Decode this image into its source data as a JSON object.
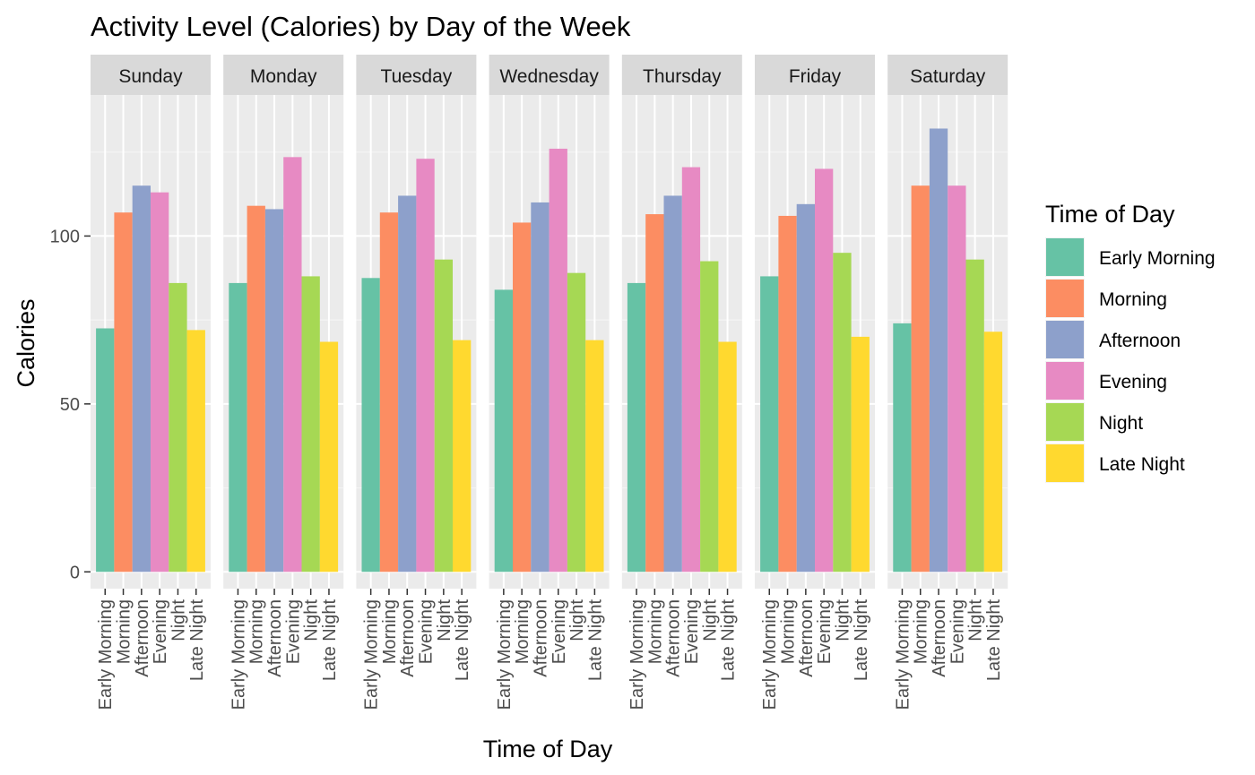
{
  "chart_data": {
    "type": "bar",
    "title": "Activity Level (Calories) by Day of the Week",
    "xlabel": "Time of Day",
    "ylabel": "Calories",
    "ylim": [
      -5,
      142
    ],
    "yticks": [
      0,
      50,
      100
    ],
    "grid": true,
    "legend_title": "Time of Day",
    "legend_position": "right",
    "categories": [
      "Early Morning",
      "Morning",
      "Afternoon",
      "Evening",
      "Night",
      "Late Night"
    ],
    "colors": [
      "#66C2A5",
      "#FC8D62",
      "#8DA0CB",
      "#E78AC3",
      "#A6D854",
      "#FFD92F"
    ],
    "facets": [
      {
        "name": "Sunday",
        "values": [
          72.5,
          107,
          115,
          113,
          86,
          72
        ]
      },
      {
        "name": "Monday",
        "values": [
          86,
          109,
          108,
          123.5,
          88,
          68.5
        ]
      },
      {
        "name": "Tuesday",
        "values": [
          87.5,
          107,
          112,
          123,
          93,
          69
        ]
      },
      {
        "name": "Wednesday",
        "values": [
          84,
          104,
          110,
          126,
          89,
          69
        ]
      },
      {
        "name": "Thursday",
        "values": [
          86,
          106.5,
          112,
          120.5,
          92.5,
          68.5
        ]
      },
      {
        "name": "Friday",
        "values": [
          88,
          106,
          109.5,
          120,
          95,
          70
        ]
      },
      {
        "name": "Saturday",
        "values": [
          74,
          115,
          132,
          115,
          93,
          71.5
        ]
      }
    ]
  }
}
